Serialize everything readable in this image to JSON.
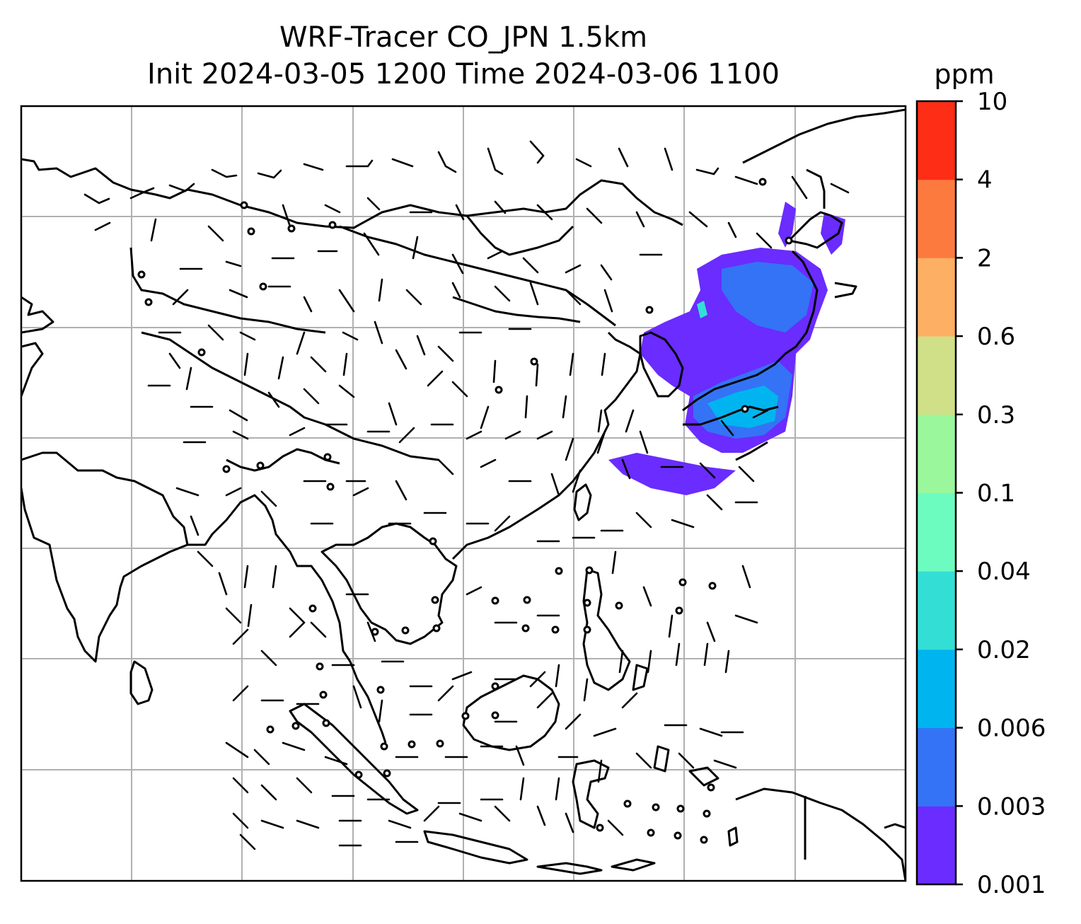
{
  "title": {
    "line1": "WRF-Tracer CO_JPN 1.5km",
    "line2": "Init 2024-03-05 1200 Time 2024-03-06 1100"
  },
  "colorbar": {
    "unit": "ppm",
    "levels": [
      "0.001",
      "0.003",
      "0.006",
      "0.02",
      "0.04",
      "0.1",
      "0.3",
      "0.6",
      "2",
      "4",
      "10"
    ],
    "colors": [
      "#6a2cff",
      "#3473f5",
      "#00b5ef",
      "#33dfd5",
      "#6dfcc0",
      "#9af79b",
      "#d0e088",
      "#fdb063",
      "#fd7a3f",
      "#fd2d16"
    ]
  },
  "map": {
    "coastline_color": "#000000",
    "gridline_color": "#b0b0b0",
    "plume_colors": {
      "low": "#6a2cff",
      "mid": "#3473f5",
      "high": "#00b5ef",
      "peak": "#33dfd5"
    }
  }
}
